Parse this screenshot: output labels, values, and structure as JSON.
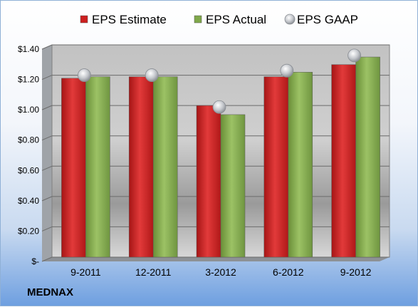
{
  "company": "MEDNAX",
  "chart_data": {
    "type": "bar",
    "categories": [
      "9-2011",
      "12-2011",
      "3-2012",
      "6-2012",
      "9-2012"
    ],
    "series": [
      {
        "name": "EPS Estimate",
        "kind": "bar",
        "color": "#cc1f1f",
        "values": [
          1.18,
          1.19,
          1.0,
          1.19,
          1.27
        ]
      },
      {
        "name": "EPS Actual",
        "kind": "bar",
        "color": "#7fa84a",
        "values": [
          1.19,
          1.19,
          0.94,
          1.22,
          1.32
        ]
      },
      {
        "name": "EPS GAAP",
        "kind": "marker",
        "color": "#b8bcc4",
        "values": [
          1.2,
          1.2,
          0.99,
          1.23,
          1.33
        ]
      }
    ],
    "yticks": [
      "$-",
      "$0.20",
      "$0.40",
      "$0.60",
      "$0.80",
      "$1.00",
      "$1.20",
      "$1.40"
    ],
    "ylim": [
      0,
      1.4
    ],
    "legend_position": "top",
    "grid": true
  }
}
